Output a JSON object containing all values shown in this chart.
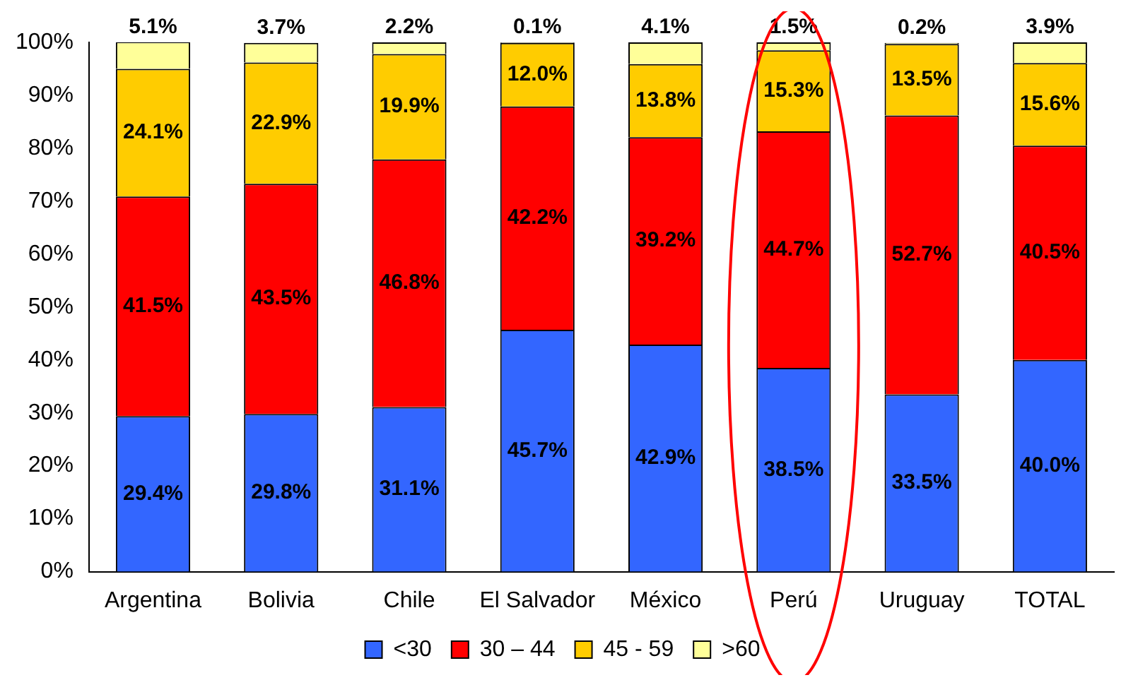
{
  "chart_data": {
    "type": "bar",
    "stacked": true,
    "categories": [
      "Argentina",
      "Bolivia",
      "Chile",
      "El Salvador",
      "México",
      "Perú",
      "Uruguay",
      "TOTAL"
    ],
    "series": [
      {
        "name": "<30",
        "color": "#3366ff",
        "values": [
          29.4,
          29.8,
          31.1,
          45.7,
          42.9,
          38.5,
          33.5,
          40.0
        ],
        "value_labels": [
          "29.4%",
          "29.8%",
          "31.1%",
          "45.7%",
          "42.9%",
          "38.5%",
          "33.5%",
          "40.0%"
        ]
      },
      {
        "name": "30 – 44",
        "color": "#ff0000",
        "values": [
          41.5,
          43.5,
          46.8,
          42.2,
          39.2,
          44.7,
          52.7,
          40.5
        ],
        "value_labels": [
          "41.5%",
          "43.5%",
          "46.8%",
          "42.2%",
          "39.2%",
          "44.7%",
          "52.7%",
          "40.5%"
        ]
      },
      {
        "name": "45 - 59",
        "color": "#ffcc00",
        "values": [
          24.1,
          22.9,
          19.9,
          12.0,
          13.8,
          15.3,
          13.5,
          15.6
        ],
        "value_labels": [
          "24.1%",
          "22.9%",
          "19.9%",
          "12.0%",
          "13.8%",
          "15.3%",
          "13.5%",
          "15.6%"
        ]
      },
      {
        "name": ">60",
        "color": "#ffff99",
        "values": [
          5.1,
          3.7,
          2.2,
          0.1,
          4.1,
          1.5,
          0.2,
          3.9
        ],
        "value_labels": [
          "5.1%",
          "3.7%",
          "2.2%",
          "0.1%",
          "4.1%",
          "1.5%",
          "0.2%",
          "3.9%"
        ]
      }
    ],
    "ylim": [
      0,
      100
    ],
    "yticks": [
      {
        "value": 0,
        "label": "0%"
      },
      {
        "value": 10,
        "label": "10%"
      },
      {
        "value": 20,
        "label": "20%"
      },
      {
        "value": 30,
        "label": "30%"
      },
      {
        "value": 40,
        "label": "40%"
      },
      {
        "value": 50,
        "label": "50%"
      },
      {
        "value": 60,
        "label": "60%"
      },
      {
        "value": 70,
        "label": "70%"
      },
      {
        "value": 80,
        "label": "80%"
      },
      {
        "value": 90,
        "label": "90%"
      },
      {
        "value": 100,
        "label": "100%"
      }
    ],
    "grid": false,
    "legend": "bottom"
  }
}
